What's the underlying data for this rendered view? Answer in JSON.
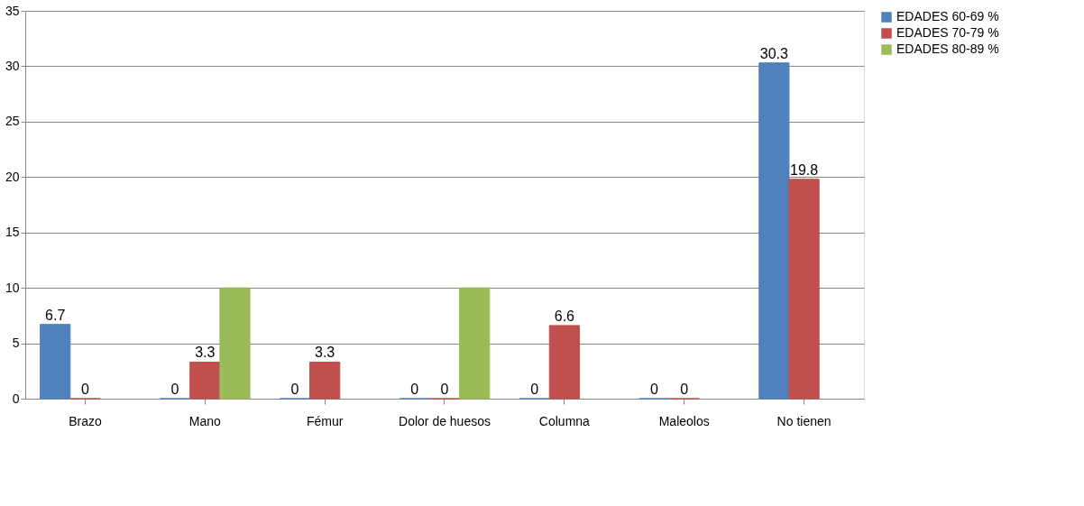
{
  "chart_data": {
    "type": "bar",
    "categories": [
      "Brazo",
      "Mano",
      "Fémur",
      "Dolor de huesos",
      "Columna",
      "Maleolos",
      "No tienen"
    ],
    "series": [
      {
        "name": "EDADES 60-69 %",
        "color": "#4f81bd",
        "values": [
          6.7,
          0,
          0,
          0,
          0,
          0,
          30.3
        ],
        "value_labels": [
          "6.7",
          "0",
          "0",
          "0",
          "0",
          "0",
          "30.3"
        ]
      },
      {
        "name": "EDADES 70-79 %",
        "color": "#c0504d",
        "values": [
          0,
          3.3,
          3.3,
          0,
          6.6,
          0,
          19.8
        ],
        "value_labels": [
          "0",
          "3.3",
          "3.3",
          "0",
          "6.6",
          "0",
          "19.8"
        ]
      },
      {
        "name": "EDADES 80-89 %",
        "color": "#9bbb59",
        "values": [
          null,
          10,
          null,
          10,
          null,
          null,
          null
        ],
        "value_labels": [
          null,
          null,
          null,
          null,
          null,
          null,
          null
        ]
      }
    ],
    "ylim": [
      0,
      35
    ],
    "yticks": [
      0,
      5,
      10,
      15,
      20,
      25,
      30,
      35
    ],
    "grid": "y",
    "legend": "right"
  }
}
